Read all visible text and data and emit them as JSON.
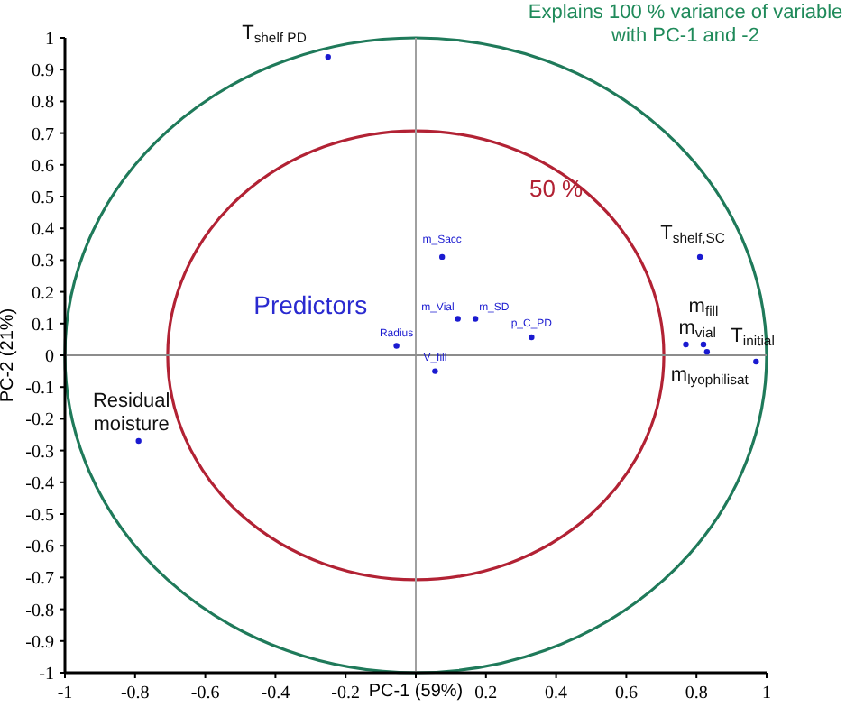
{
  "chart_data": {
    "type": "scatter",
    "title": "Explains 100 % variance of variable with PC-1 and -2",
    "xlabel": "PC-1 (59%)",
    "ylabel": "PC-2 (21%)",
    "xlim": [
      -1,
      1
    ],
    "ylim": [
      -1,
      1
    ],
    "xticks": [
      -1,
      -0.8,
      -0.6,
      -0.4,
      -0.2,
      {
        "value": 0,
        "label": null
      },
      0.2,
      0.4,
      0.6,
      0.8,
      1
    ],
    "yticks": [
      -1,
      -0.9,
      -0.8,
      -0.7,
      -0.6,
      -0.5,
      -0.4,
      -0.3,
      -0.2,
      -0.1,
      0,
      0.1,
      0.2,
      0.3,
      0.4,
      0.5,
      0.6,
      0.7,
      0.8,
      0.9,
      1
    ],
    "grid": false,
    "marker": "circle",
    "ref_lines": [
      {
        "axis": "x",
        "value": 0,
        "color": "#a0a0a0"
      },
      {
        "axis": "y",
        "value": 0,
        "color": "#8c8c8c"
      }
    ],
    "annotations": [
      "50 %",
      "Predictors"
    ],
    "series": [
      {
        "color": "#1a1ad0",
        "x": [
          0.075,
          0.12,
          0.17,
          -0.055,
          0.055,
          0.33
        ],
        "values": [
          0.31,
          0.115,
          0.115,
          0.03,
          -0.05,
          0.057
        ],
        "value_labels": [
          "m_Sacc",
          "m_Vial",
          "m_SD",
          "Radius",
          "V_fill",
          "p_C_PD"
        ]
      },
      {
        "color": "#1a1ad0",
        "x": [
          -0.25,
          0.81,
          0.82,
          0.77,
          0.83,
          0.97,
          -0.79
        ],
        "values": [
          0.94,
          0.31,
          0.034,
          0.034,
          0.011,
          -0.02,
          -0.27
        ],
        "value_labels": [
          "T$_{shelf PD}$",
          "T$_{shelf,SC}$",
          "m$_{fill}$",
          "m$_{vial}$",
          "m$_{lyophilisat}$",
          "T$_{initial}$",
          "Residual moisture"
        ]
      }
    ]
  }
}
